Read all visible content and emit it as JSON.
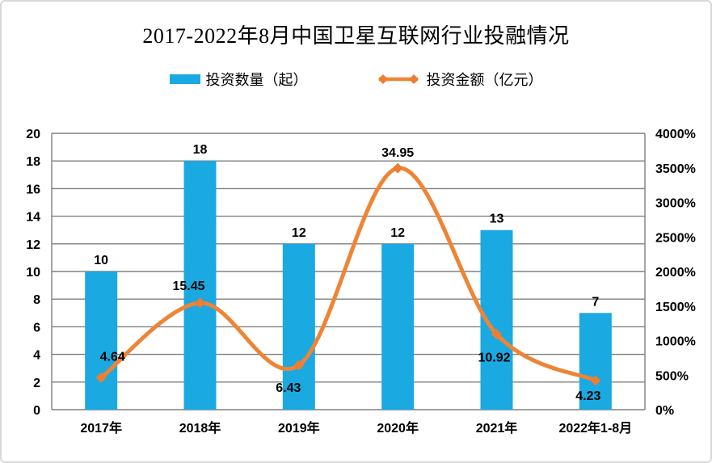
{
  "title": "2017-2022年8月中国卫星互联网行业投融情况",
  "legend": {
    "items": [
      {
        "label": "投资数量（起）",
        "type": "bar",
        "color": "#1BA9E2"
      },
      {
        "label": "投资金额（亿元）",
        "type": "line",
        "color": "#ED7D31"
      }
    ]
  },
  "chart_data": {
    "type": "bar",
    "subtype": "combo-bar-line-dual-axis",
    "title": "2017-2022年8月中国卫星互联网行业投融情况",
    "categories": [
      "2017年",
      "2018年",
      "2019年",
      "2020年",
      "2021年",
      "2022年1-8月"
    ],
    "series": [
      {
        "name": "投资数量（起）",
        "type": "bar",
        "axis": "left",
        "color": "#1BA9E2",
        "values": [
          10,
          18,
          12,
          12,
          13,
          7
        ],
        "data_labels": [
          "10",
          "18",
          "12",
          "12",
          "13",
          "7"
        ]
      },
      {
        "name": "投资金额（亿元）",
        "type": "line",
        "axis": "right",
        "smooth": true,
        "marker": "diamond",
        "color": "#EE8435",
        "marker_color": "#ED7D31",
        "values": [
          4.64,
          15.45,
          6.43,
          34.95,
          10.92,
          4.23
        ],
        "data_labels": [
          "4.64",
          "15.45",
          "6.43",
          "34.95",
          "10.92",
          "4.23"
        ],
        "right_axis_scale_factor": 100
      }
    ],
    "left_axis": {
      "min": 0,
      "max": 20,
      "step": 2,
      "tick_labels": [
        "0",
        "2",
        "4",
        "6",
        "8",
        "10",
        "12",
        "14",
        "16",
        "18",
        "20"
      ]
    },
    "right_axis": {
      "min": 0,
      "max": 4000,
      "step": 500,
      "unit": "%",
      "tick_labels": [
        "0%",
        "500%",
        "1000%",
        "1500%",
        "2000%",
        "2500%",
        "3000%",
        "3500%",
        "4000%"
      ]
    },
    "grid": "horizontal",
    "legend_position": "top",
    "colors": {
      "bar": "#1BA9E2",
      "line": "#EE8435",
      "marker": "#ED7D31",
      "gridline": "#808080",
      "text": "#000000",
      "background": "#ffffff"
    }
  }
}
